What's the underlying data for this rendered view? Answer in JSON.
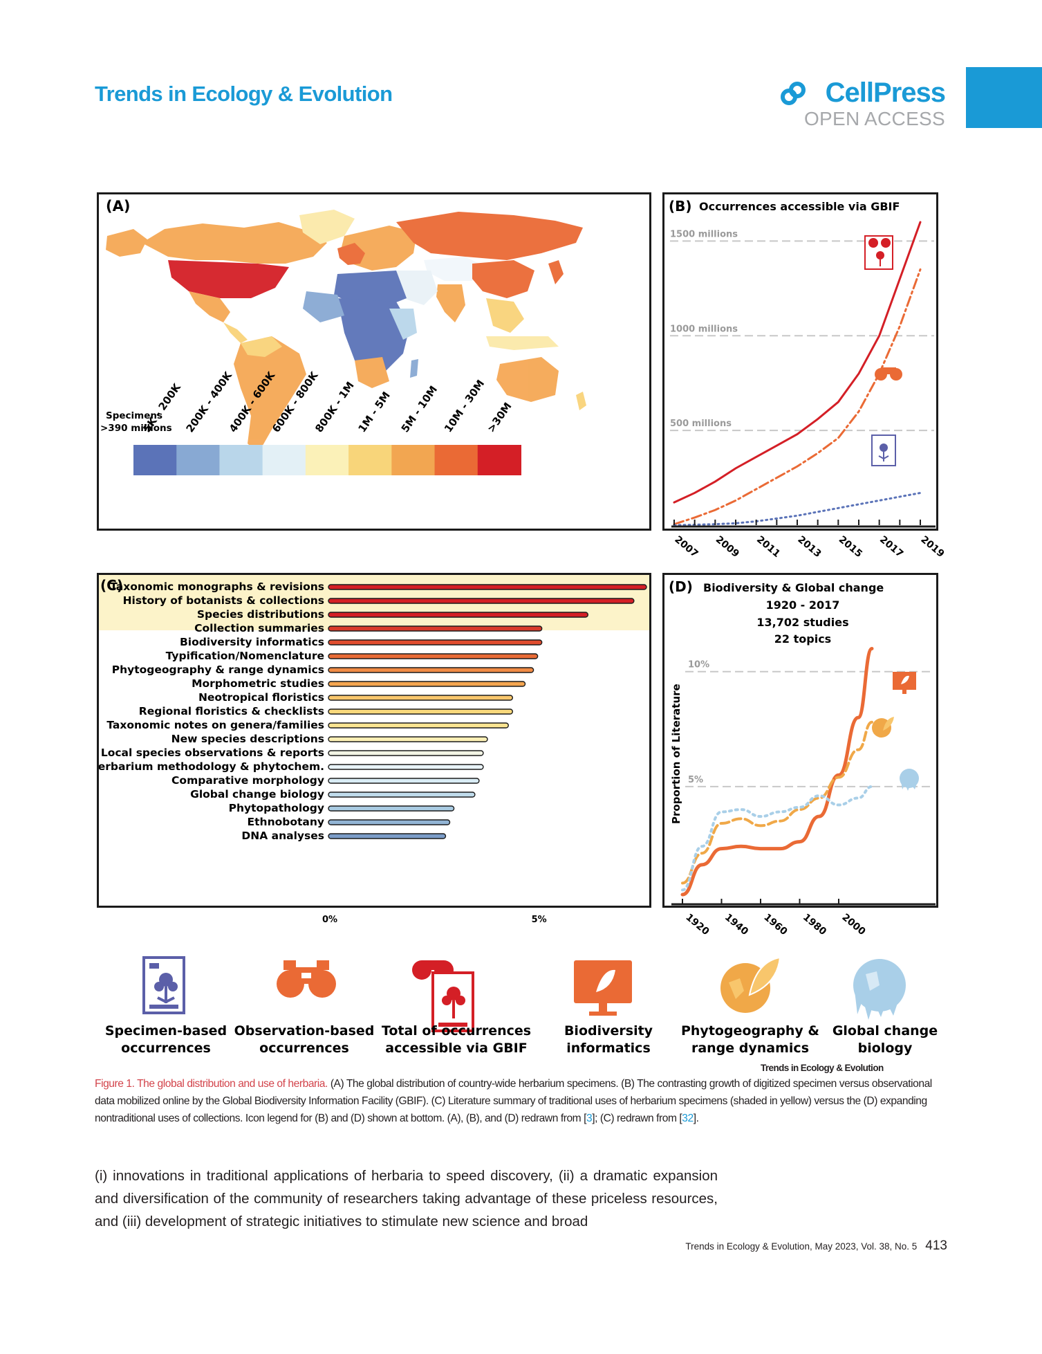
{
  "header": {
    "journal": "Trends in Ecology & Evolution",
    "publisher": "CellPress",
    "access": "OPEN ACCESS"
  },
  "panelA": {
    "label": "(A)",
    "legend_title_line1": "Specimens",
    "legend_title_line2": ">390 millions",
    "bins": [
      "5K - 200K",
      "200K - 400K",
      "400K - 600K",
      "600K - 800K",
      "800K - 1M",
      "1M - 5M",
      "5M - 10M",
      "10M - 30M",
      ">30M"
    ],
    "bin_colors": [
      "#5b73b8",
      "#88a9d3",
      "#b9d6ea",
      "#e3f0f6",
      "#fbf1b8",
      "#f8d57a",
      "#f2a651",
      "#ea6a35",
      "#d41f26"
    ]
  },
  "panelB": {
    "label": "(B)",
    "title": "Occurrences accessible via GBIF",
    "gridlines": [
      "1500 millions",
      "1000 millions",
      "500 millions"
    ],
    "years": [
      "2007",
      "2009",
      "2011",
      "2013",
      "2015",
      "2017",
      "2019"
    ]
  },
  "panelC": {
    "label": "(C)",
    "axis_ticks": [
      "0%",
      "5%"
    ]
  },
  "panelD": {
    "label": "(D)",
    "title_lines": [
      "Biodiversity & Global change",
      "1920 - 2017",
      "13,702 studies",
      "22 topics"
    ],
    "ylabel": "Proportion of Literature",
    "gridlines": [
      "10%",
      "5%"
    ],
    "years": [
      "1920",
      "1940",
      "1960",
      "1980",
      "2000"
    ]
  },
  "icon_legend": [
    {
      "icon": "specimen-sheet-icon",
      "line1": "Specimen-based",
      "line2": "occurrences",
      "color": "#5b5fa8"
    },
    {
      "icon": "binoculars-icon",
      "line1": "Observation-based",
      "line2": "occurrences",
      "color": "#ea6a35"
    },
    {
      "icon": "binoculars-specimen-icon",
      "line1": "Total of occurrences",
      "line2": "accessible via GBIF",
      "color": "#d41f26"
    },
    {
      "icon": "computer-leaf-icon",
      "line1": "Biodiversity",
      "line2": "informatics",
      "color": "#ea6a35"
    },
    {
      "icon": "globe-leaf-icon",
      "line1": "Phytogeography &",
      "line2": "range dynamics",
      "color": "#f0a848"
    },
    {
      "icon": "melting-globe-icon",
      "line1": "Global change",
      "line2": "biology",
      "color": "#a9cfe8"
    }
  ],
  "figure_credit": "Trends in Ecology & Evolution",
  "caption": {
    "label": "Figure 1.",
    "title": "The global distribution and use of herbaria.",
    "text_1": "(A) The global distribution of country-wide herbarium specimens. (B) The contrasting growth of digitized specimen versus observational data mobilized online by the Global Biodiversity Information Facility (GBIF). (C) Literature summary of traditional uses of herbarium specimens (shaded in yellow) versus the (D) expanding nontraditional uses of collections. Icon legend for (B) and (D) shown at bottom. (A), (B), and (D) redrawn from [",
    "ref_1": "3",
    "text_2": "]; (C) redrawn from [",
    "ref_2": "32",
    "text_3": "]."
  },
  "body": "(i) innovations in traditional applications of herbaria to speed discovery, (ii) a dramatic expansion and diversification of the community of researchers taking advantage of these priceless resources, and (iii) development of strategic initiatives to stimulate new science and broad",
  "footer": {
    "citation": "Trends in Ecology & Evolution, May 2023, Vol. 38, No. 5",
    "page": "413"
  },
  "chart_data": [
    {
      "type": "line",
      "panel": "B",
      "title": "Occurrences accessible via GBIF",
      "x": [
        2007,
        2008,
        2009,
        2010,
        2011,
        2012,
        2013,
        2014,
        2015,
        2016,
        2017,
        2018,
        2019
      ],
      "series": [
        {
          "name": "Total of occurrences accessible via GBIF",
          "values": [
            120,
            170,
            230,
            300,
            360,
            420,
            480,
            560,
            650,
            800,
            1000,
            1300,
            1600
          ]
        },
        {
          "name": "Observation-based occurrences",
          "values": [
            5,
            40,
            80,
            130,
            190,
            250,
            310,
            380,
            460,
            600,
            800,
            1050,
            1350
          ]
        },
        {
          "name": "Specimen-based occurrences",
          "values": [
            0,
            2,
            5,
            10,
            20,
            35,
            50,
            70,
            90,
            110,
            130,
            150,
            170
          ]
        }
      ],
      "ylim": [
        0,
        1600
      ],
      "yunits": "millions"
    },
    {
      "type": "bar",
      "panel": "C",
      "orientation": "horizontal",
      "categories": [
        "Taxonomic monographs & revisions",
        "History of botanists & collections",
        "Species distributions",
        "Collection summaries",
        "Biodiversity informatics",
        "Typification/Nomenclature",
        "Phytogeography & range dynamics",
        "Morphometric studies",
        "Neotropical floristics",
        "Regional floristics & checklists",
        "Taxonomic notes on genera/families",
        "New species descriptions",
        "Local species observations & reports",
        "Herbarium methodology & phytochem.",
        "Comparative morphology",
        "Global change biology",
        "Phytopathology",
        "Ethnobotany",
        "DNA analyses"
      ],
      "values": [
        7.6,
        7.3,
        6.2,
        5.1,
        5.1,
        5.0,
        4.9,
        4.7,
        4.4,
        4.4,
        4.3,
        3.8,
        3.7,
        3.7,
        3.6,
        3.5,
        3.0,
        2.9,
        2.8
      ],
      "colors": [
        "#d41f26",
        "#d41f26",
        "#d41f26",
        "#d93a2b",
        "#e04d2f",
        "#e86b36",
        "#f08b45",
        "#f4a550",
        "#f8c66c",
        "#f9d97c",
        "#fae491",
        "#fbefb4",
        "#f2f4e4",
        "#e8f3f8",
        "#d9ecf5",
        "#c0dcec",
        "#a9cbe2",
        "#92b4d4",
        "#7b9cc8"
      ],
      "highlighted_traditional": [
        "Taxonomic monographs & revisions",
        "History of botanists & collections",
        "Species distributions"
      ],
      "xlim": [
        0,
        7.6
      ],
      "xunits": "%"
    },
    {
      "type": "line",
      "panel": "D",
      "title": "Biodiversity & Global change",
      "ylabel": "Proportion of Literature",
      "x": [
        1920,
        1930,
        1940,
        1950,
        1960,
        1970,
        1980,
        1990,
        2000,
        2010,
        2017
      ],
      "series": [
        {
          "name": "Biodiversity informatics",
          "values": [
            0.3,
            1.6,
            2.3,
            2.4,
            2.3,
            2.3,
            2.6,
            3.7,
            5.5,
            8.0,
            11.0
          ]
        },
        {
          "name": "Phytogeography & range dynamics",
          "values": [
            0.8,
            2.1,
            3.4,
            3.6,
            3.3,
            3.5,
            4.0,
            4.5,
            5.4,
            6.6,
            7.8
          ]
        },
        {
          "name": "Global change biology",
          "values": [
            0.5,
            2.4,
            3.9,
            4.0,
            3.7,
            3.9,
            4.1,
            4.6,
            4.2,
            4.5,
            5.0
          ]
        }
      ],
      "ylim": [
        0,
        13
      ],
      "yunits": "%",
      "xlim": [
        1920,
        2017
      ]
    }
  ]
}
